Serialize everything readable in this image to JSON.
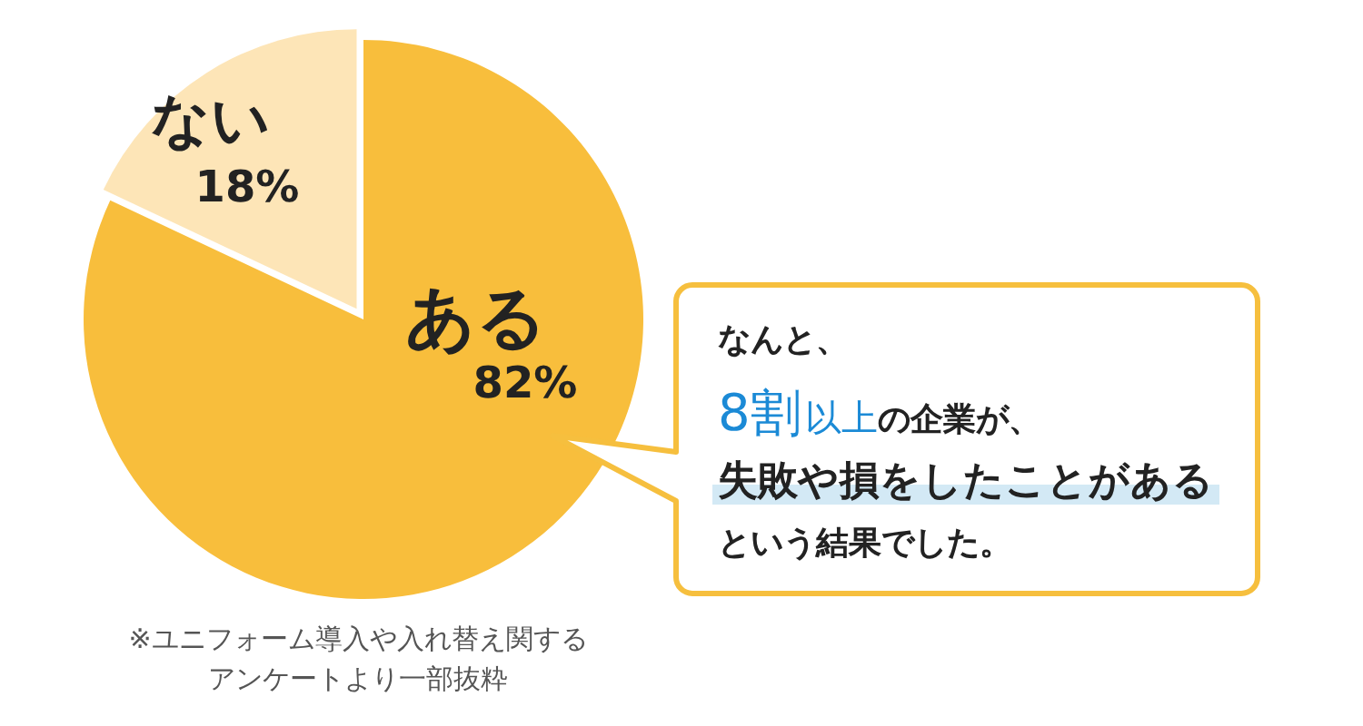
{
  "chart_data": {
    "type": "pie",
    "categories": [
      "ある",
      "ない"
    ],
    "values": [
      82,
      18
    ],
    "colors": [
      "#f8be3c",
      "#fde5b7"
    ],
    "value_labels": [
      "82%",
      "18%"
    ],
    "annotations": [
      "なんと、",
      "8割",
      "以上",
      "の企業が、",
      "失敗や損をしたことがある",
      "という結果でした。",
      "※ユニフォーム導入や入れ替え関する",
      "アンケートより一部抜粋"
    ]
  }
}
